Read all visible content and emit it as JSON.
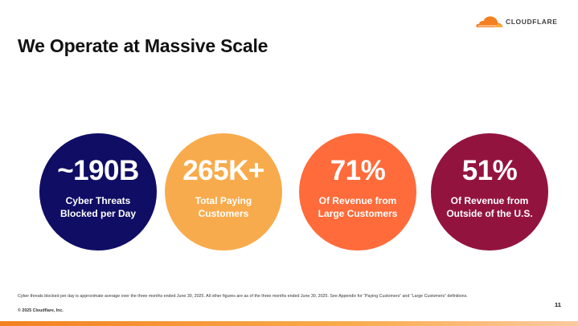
{
  "logo": {
    "name": "CLOUDFLARE",
    "icon": "cloudflare-cloud-icon",
    "color": "#f38020"
  },
  "title": "We Operate at Massive Scale",
  "stats": [
    {
      "value": "~190B",
      "label_line1": "Cyber Threats",
      "label_line2": "Blocked per Day",
      "color": "#0f0d64"
    },
    {
      "value": "265K+",
      "label_line1": "Total Paying",
      "label_line2": "Customers",
      "color": "#f8ab4c"
    },
    {
      "value": "71%",
      "label_line1": "Of Revenue from",
      "label_line2": "Large Customers",
      "color": "#ff6b3a"
    },
    {
      "value": "51%",
      "label_line1": "Of Revenue from",
      "label_line2": "Outside of the U.S.",
      "color": "#93133f"
    }
  ],
  "footnote": "Cyber threats blocked per day is approximate average over the three months ended June 30, 2025. All other figures are as of the three months ended June 30, 2025. See Appendix for “Paying Customers” and “Large Customers” definitions.",
  "copyright": "© 2025 Cloudflare, Inc.",
  "page_number": "11"
}
